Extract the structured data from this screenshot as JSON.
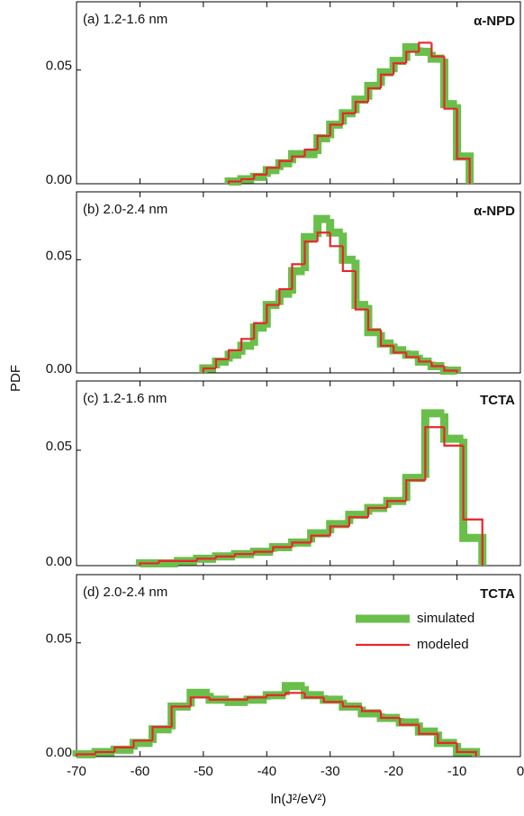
{
  "chart_data": [
    {
      "type": "step-histogram",
      "label": "(a) 1.2-1.6 nm",
      "material": "α-NPD",
      "bins": [
        -46,
        -44,
        -42,
        -40,
        -38,
        -36,
        -34,
        -32,
        -30,
        -28,
        -26,
        -24,
        -22,
        -20,
        -18,
        -16,
        -14,
        -12,
        -10,
        -8
      ],
      "series": [
        {
          "color": "#6abf4b",
          "values": [
            0.001,
            0.002,
            0.003,
            0.006,
            0.009,
            0.013,
            0.013,
            0.02,
            0.026,
            0.031,
            0.037,
            0.043,
            0.049,
            0.054,
            0.06,
            0.058,
            0.055,
            0.035,
            0.012
          ]
        },
        {
          "color": "#e8262a",
          "values": [
            0.001,
            0.002,
            0.004,
            0.007,
            0.01,
            0.012,
            0.015,
            0.021,
            0.026,
            0.031,
            0.036,
            0.042,
            0.048,
            0.053,
            0.058,
            0.062,
            0.056,
            0.033,
            0.011
          ]
        }
      ],
      "xlim": [
        -70,
        0
      ],
      "xticks": [
        -70,
        -60,
        -50,
        -40,
        -30,
        -20,
        -10,
        0
      ],
      "ylim": [
        0,
        0.08
      ],
      "yticks": [
        {
          "value": 0,
          "label": "0.00"
        },
        {
          "value": 0.05,
          "label": "0.05"
        }
      ]
    },
    {
      "type": "step-histogram",
      "label": "(b) 2.0-2.4 nm",
      "material": "α-NPD",
      "ylabel": "PDF",
      "bins": [
        -50,
        -48,
        -46,
        -44,
        -42,
        -40,
        -38,
        -36,
        -34,
        -32,
        -30,
        -28,
        -26,
        -24,
        -22,
        -20,
        -18,
        -16,
        -14,
        -12,
        -10
      ],
      "series": [
        {
          "color": "#6abf4b",
          "values": [
            0.002,
            0.005,
            0.008,
            0.012,
            0.02,
            0.03,
            0.035,
            0.045,
            0.06,
            0.068,
            0.062,
            0.05,
            0.03,
            0.018,
            0.013,
            0.01,
            0.008,
            0.005,
            0.003,
            0.001
          ]
        },
        {
          "color": "#e8262a",
          "values": [
            0.002,
            0.006,
            0.01,
            0.015,
            0.022,
            0.03,
            0.037,
            0.048,
            0.058,
            0.062,
            0.056,
            0.045,
            0.028,
            0.019,
            0.012,
            0.009,
            0.007,
            0.005,
            0.003,
            0.001
          ]
        }
      ],
      "xlim": [
        -70,
        0
      ],
      "xticks": [
        -70,
        -60,
        -50,
        -40,
        -30,
        -20,
        -10,
        0
      ],
      "ylim": [
        0,
        0.08
      ],
      "yticks": [
        {
          "value": 0,
          "label": "0.00"
        },
        {
          "value": 0.05,
          "label": "0.05"
        }
      ]
    },
    {
      "type": "step-histogram",
      "label": "(c) 1.2-1.6 nm",
      "material": "TCTA",
      "bins": [
        -60,
        -57,
        -54,
        -51,
        -48,
        -45,
        -42,
        -39,
        -36,
        -33,
        -30,
        -27,
        -24,
        -21,
        -18,
        -15,
        -12,
        -9,
        -6
      ],
      "series": [
        {
          "color": "#6abf4b",
          "values": [
            0.001,
            0.001,
            0.002,
            0.003,
            0.004,
            0.005,
            0.006,
            0.008,
            0.01,
            0.014,
            0.018,
            0.022,
            0.025,
            0.028,
            0.038,
            0.066,
            0.055,
            0.012
          ]
        },
        {
          "color": "#e8262a",
          "values": [
            0.001,
            0.002,
            0.002,
            0.003,
            0.004,
            0.005,
            0.006,
            0.008,
            0.01,
            0.013,
            0.017,
            0.021,
            0.025,
            0.028,
            0.037,
            0.06,
            0.052,
            0.02
          ]
        }
      ],
      "xlim": [
        -70,
        0
      ],
      "xticks": [
        -70,
        -60,
        -50,
        -40,
        -30,
        -20,
        -10,
        0
      ],
      "ylim": [
        0,
        0.08
      ],
      "yticks": [
        {
          "value": 0,
          "label": "0.00"
        },
        {
          "value": 0.05,
          "label": "0.05"
        }
      ]
    },
    {
      "type": "step-histogram",
      "label": "(d) 2.0-2.4 nm",
      "material": "TCTA",
      "xlabel": "ln(J²/eV²)",
      "bins": [
        -70,
        -67,
        -64,
        -61,
        -58,
        -55,
        -52,
        -49,
        -46,
        -43,
        -40,
        -37,
        -34,
        -31,
        -28,
        -25,
        -22,
        -19,
        -16,
        -13,
        -10,
        -7
      ],
      "series": [
        {
          "name": "simulated",
          "color": "#6abf4b",
          "values": [
            0.001,
            0.002,
            0.003,
            0.006,
            0.012,
            0.022,
            0.028,
            0.025,
            0.024,
            0.025,
            0.027,
            0.031,
            0.027,
            0.025,
            0.022,
            0.019,
            0.017,
            0.015,
            0.011,
            0.006,
            0.002
          ]
        },
        {
          "name": "modeled",
          "color": "#e8262a",
          "values": [
            0.001,
            0.002,
            0.004,
            0.007,
            0.013,
            0.022,
            0.026,
            0.025,
            0.025,
            0.026,
            0.027,
            0.028,
            0.026,
            0.024,
            0.022,
            0.02,
            0.017,
            0.014,
            0.01,
            0.006,
            0.002
          ]
        }
      ],
      "legend": "right",
      "xlim": [
        -70,
        0
      ],
      "xticks": [
        -70,
        -60,
        -50,
        -40,
        -30,
        -20,
        -10,
        0
      ],
      "ylim": [
        0,
        0.08
      ],
      "yticks": [
        {
          "value": 0,
          "label": "0.00"
        },
        {
          "value": 0.05,
          "label": "0.05"
        }
      ]
    }
  ]
}
